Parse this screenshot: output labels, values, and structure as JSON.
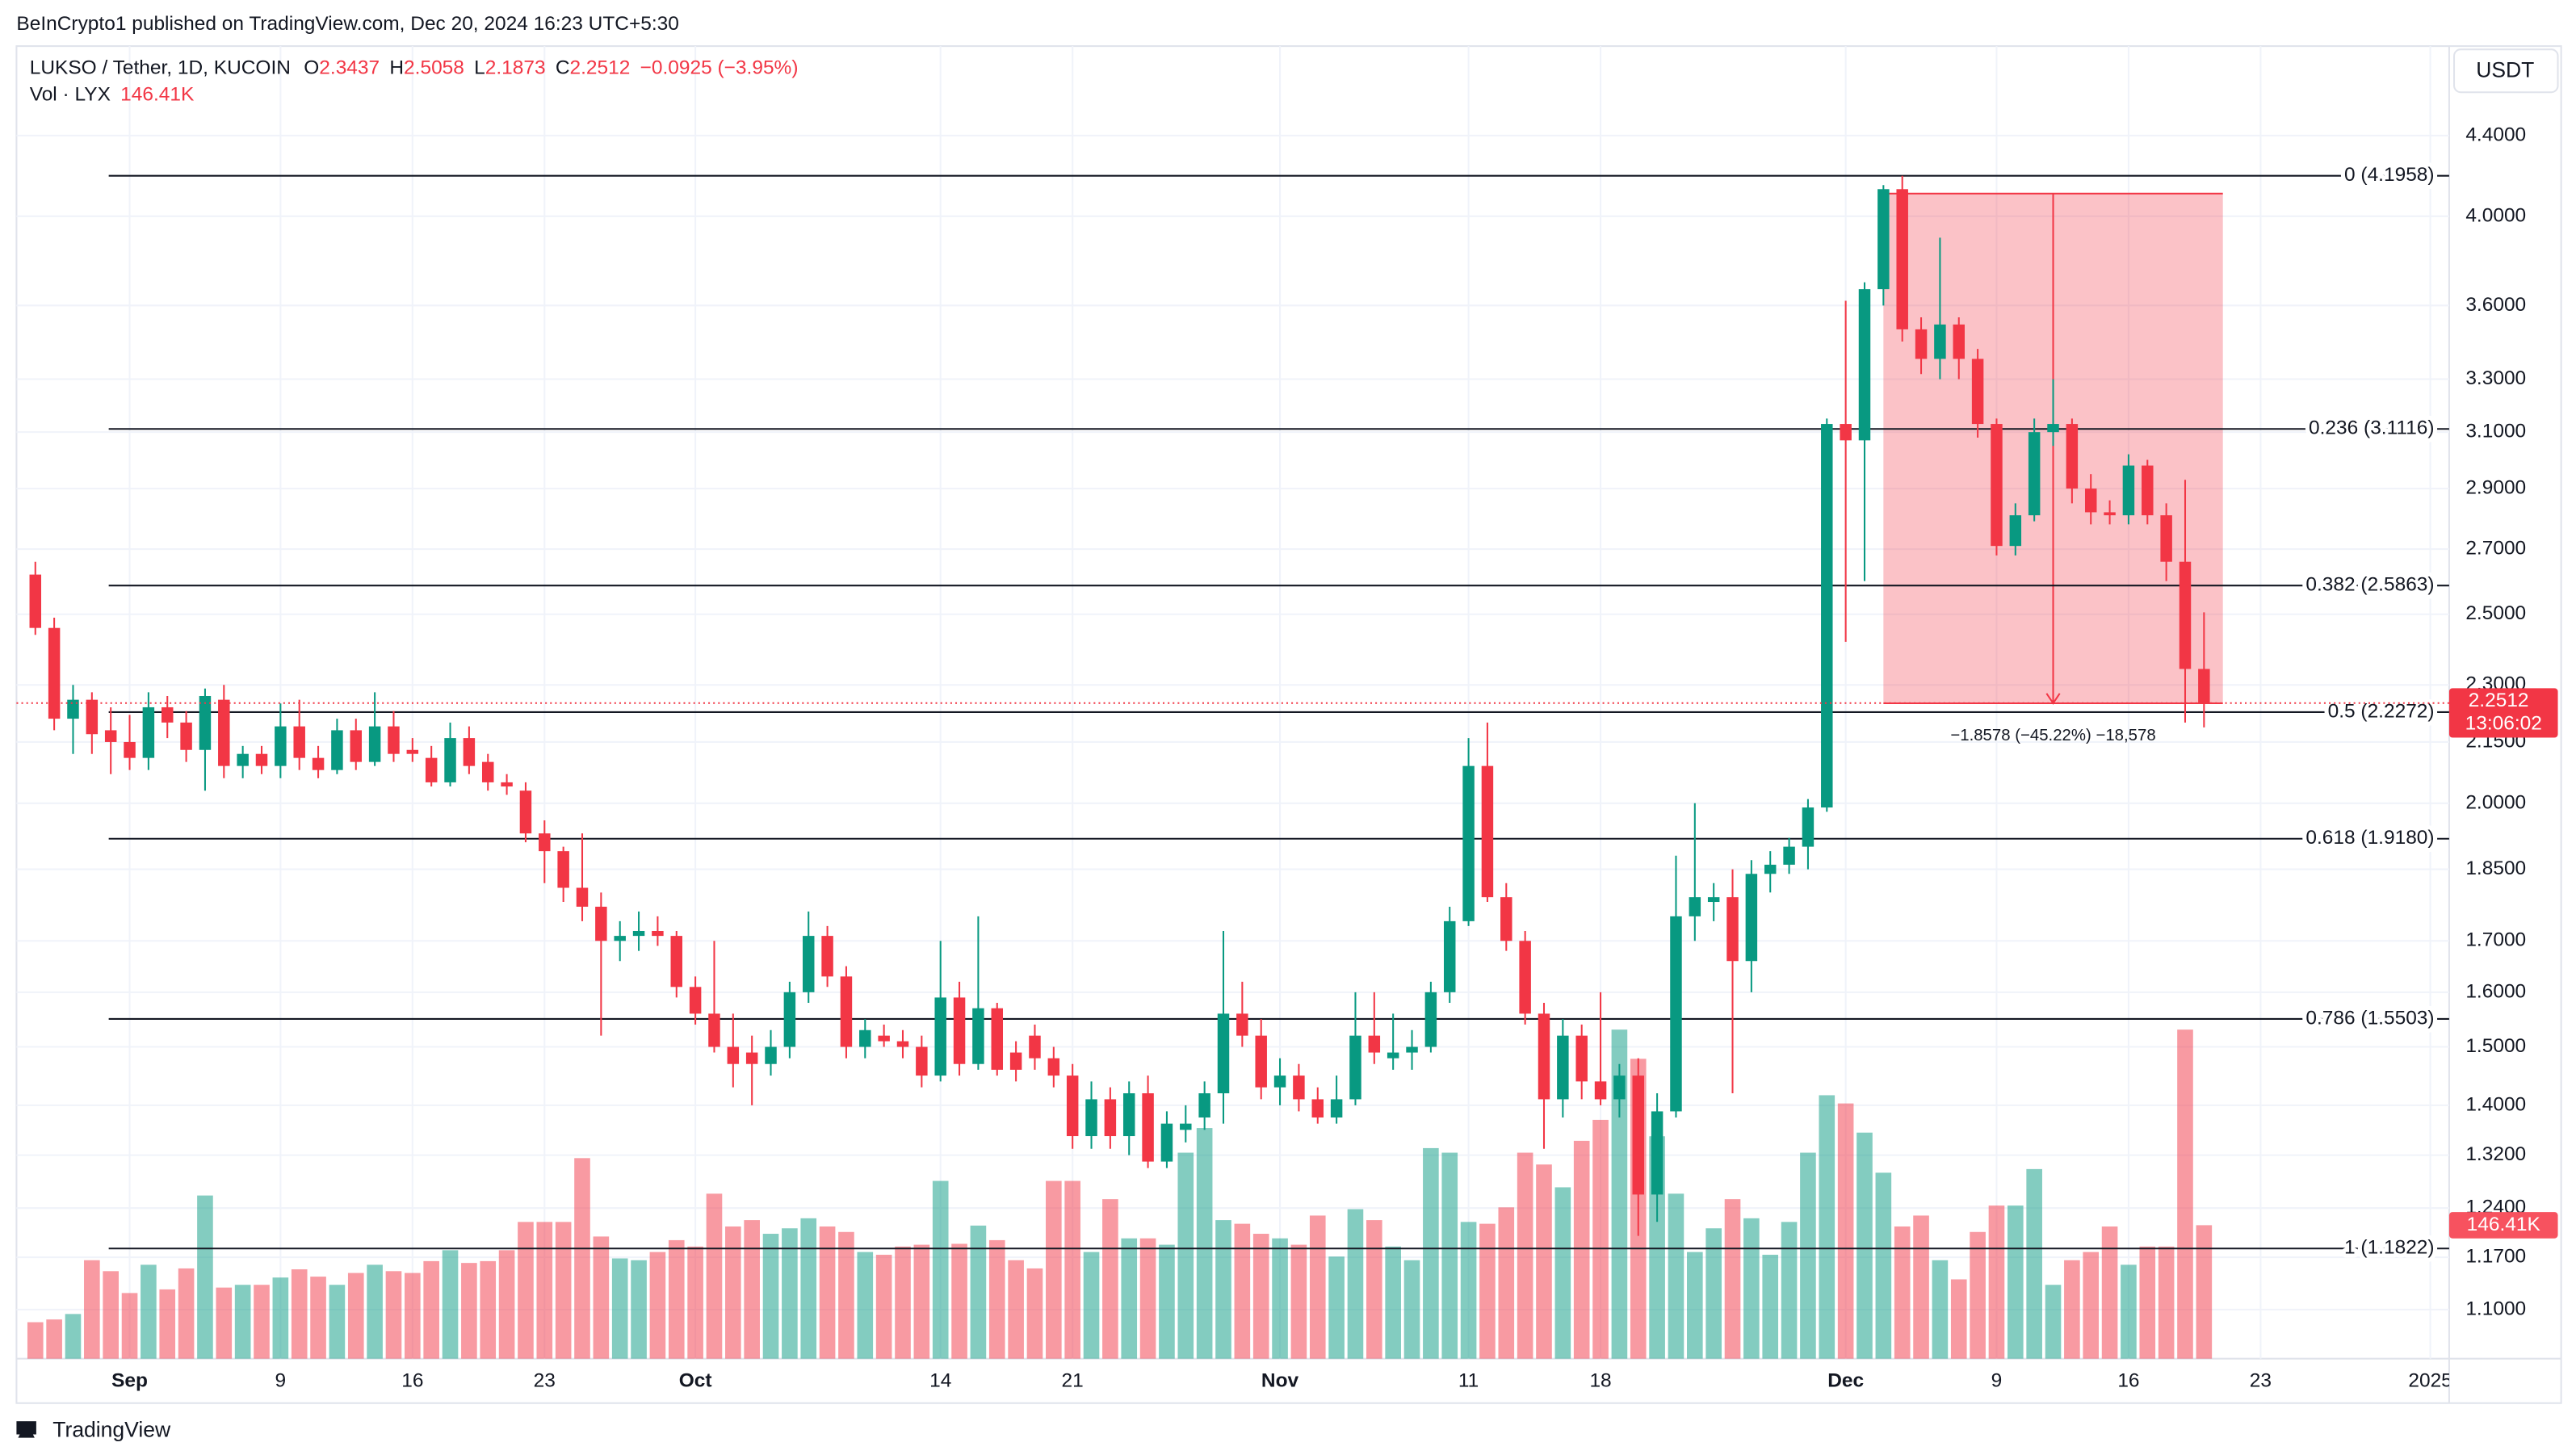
{
  "header": "BeInCrypto1 published on TradingView.com, Dec 20, 2024 16:23 UTC+5:30",
  "branding": "TradingView",
  "chart_data": {
    "type": "candlestick",
    "symbol": "LUKSO / Tether, 1D, KUCOIN",
    "legend_keys": [
      "O",
      "H",
      "L",
      "C"
    ],
    "change": "−0.0925 (−3.95%)",
    "volume_legend": "Vol · LYX",
    "volume_label": "146.41K",
    "currency": "USDT",
    "countdown": "13:06:02",
    "up_color": "#089981",
    "down_color": "#f23645",
    "log_scale": true,
    "grid": true,
    "x": [
      "08-27",
      "08-28",
      "08-29",
      "08-30",
      "08-31",
      "09-01",
      "09-02",
      "09-03",
      "09-04",
      "09-05",
      "09-06",
      "09-07",
      "09-08",
      "09-09",
      "09-10",
      "09-11",
      "09-12",
      "09-13",
      "09-14",
      "09-15",
      "09-16",
      "09-17",
      "09-18",
      "09-19",
      "09-20",
      "09-21",
      "09-22",
      "09-23",
      "09-24",
      "09-25",
      "09-26",
      "09-27",
      "09-28",
      "09-29",
      "09-30",
      "10-01",
      "10-02",
      "10-03",
      "10-04",
      "10-05",
      "10-06",
      "10-07",
      "10-08",
      "10-09",
      "10-10",
      "10-11",
      "10-12",
      "10-13",
      "10-14",
      "10-15",
      "10-16",
      "10-17",
      "10-18",
      "10-19",
      "10-20",
      "10-21",
      "10-22",
      "10-23",
      "10-24",
      "10-25",
      "10-26",
      "10-27",
      "10-28",
      "10-29",
      "10-30",
      "10-31",
      "11-01",
      "11-02",
      "11-03",
      "11-04",
      "11-05",
      "11-06",
      "11-07",
      "11-08",
      "11-09",
      "11-10",
      "11-11",
      "11-12",
      "11-13",
      "11-14",
      "11-15",
      "11-16",
      "11-17",
      "11-18",
      "11-19",
      "11-20",
      "11-21",
      "11-22",
      "11-23",
      "11-24",
      "11-25",
      "11-26",
      "11-27",
      "11-28",
      "11-29",
      "11-30",
      "12-01",
      "12-02",
      "12-03",
      "12-04",
      "12-05",
      "12-06",
      "12-07",
      "12-08",
      "12-09",
      "12-10",
      "12-11",
      "12-12",
      "12-13",
      "12-14",
      "12-15",
      "12-16",
      "12-17",
      "12-18",
      "12-19",
      "12-20"
    ],
    "open": [
      2.62,
      2.46,
      2.21,
      2.26,
      2.18,
      2.15,
      2.11,
      2.24,
      2.2,
      2.13,
      2.26,
      2.09,
      2.12,
      2.09,
      2.19,
      2.11,
      2.08,
      2.18,
      2.1,
      2.19,
      2.13,
      2.11,
      2.05,
      2.16,
      2.1,
      2.05,
      2.03,
      1.93,
      1.89,
      1.81,
      1.77,
      1.7,
      1.71,
      1.72,
      1.71,
      1.61,
      1.56,
      1.5,
      1.49,
      1.47,
      1.5,
      1.6,
      1.71,
      1.63,
      1.5,
      1.52,
      1.51,
      1.5,
      1.45,
      1.59,
      1.47,
      1.57,
      1.49,
      1.52,
      1.48,
      1.45,
      1.35,
      1.41,
      1.35,
      1.42,
      1.31,
      1.36,
      1.38,
      1.42,
      1.56,
      1.52,
      1.43,
      1.45,
      1.41,
      1.38,
      1.41,
      1.52,
      1.48,
      1.49,
      1.5,
      1.6,
      1.74,
      2.09,
      1.79,
      1.7,
      1.56,
      1.41,
      1.52,
      1.44,
      1.41,
      1.45,
      1.26,
      1.39,
      1.75,
      1.78,
      1.79,
      1.66,
      1.84,
      1.86,
      1.9,
      1.99,
      3.13,
      3.07,
      3.67,
      4.13,
      3.5,
      3.38,
      3.52,
      3.38,
      3.13,
      2.71,
      2.81,
      3.1,
      3.13,
      2.9,
      2.82,
      2.81,
      2.98,
      2.81,
      2.66,
      2.3437
    ],
    "high": [
      2.66,
      2.49,
      2.3,
      2.28,
      2.24,
      2.22,
      2.28,
      2.27,
      2.23,
      2.29,
      2.3,
      2.14,
      2.14,
      2.25,
      2.26,
      2.14,
      2.21,
      2.21,
      2.28,
      2.23,
      2.16,
      2.14,
      2.2,
      2.19,
      2.12,
      2.07,
      2.05,
      1.96,
      1.9,
      1.93,
      1.8,
      1.74,
      1.76,
      1.75,
      1.72,
      1.63,
      1.7,
      1.56,
      1.52,
      1.53,
      1.62,
      1.76,
      1.73,
      1.65,
      1.55,
      1.54,
      1.53,
      1.52,
      1.7,
      1.62,
      1.75,
      1.58,
      1.51,
      1.54,
      1.5,
      1.47,
      1.44,
      1.43,
      1.44,
      1.45,
      1.39,
      1.4,
      1.44,
      1.72,
      1.62,
      1.55,
      1.48,
      1.47,
      1.43,
      1.45,
      1.6,
      1.6,
      1.56,
      1.53,
      1.62,
      1.77,
      2.16,
      2.2,
      1.82,
      1.72,
      1.58,
      1.55,
      1.54,
      1.6,
      1.47,
      1.48,
      1.42,
      1.88,
      2.0,
      1.82,
      1.85,
      1.87,
      1.89,
      1.92,
      2.01,
      3.15,
      3.62,
      3.7,
      4.15,
      4.1958,
      3.55,
      3.9,
      3.55,
      3.42,
      3.15,
      2.85,
      3.15,
      3.3,
      3.15,
      2.95,
      2.86,
      3.02,
      3.0,
      2.85,
      2.93,
      2.5058
    ],
    "low": [
      2.44,
      2.18,
      2.12,
      2.12,
      2.07,
      2.08,
      2.08,
      2.16,
      2.1,
      2.03,
      2.06,
      2.06,
      2.07,
      2.06,
      2.08,
      2.06,
      2.07,
      2.08,
      2.09,
      2.1,
      2.1,
      2.04,
      2.04,
      2.07,
      2.03,
      2.02,
      1.91,
      1.82,
      1.78,
      1.74,
      1.52,
      1.66,
      1.68,
      1.69,
      1.59,
      1.54,
      1.49,
      1.43,
      1.4,
      1.45,
      1.48,
      1.58,
      1.61,
      1.48,
      1.48,
      1.5,
      1.48,
      1.43,
      1.44,
      1.45,
      1.46,
      1.45,
      1.44,
      1.46,
      1.43,
      1.33,
      1.33,
      1.33,
      1.32,
      1.3,
      1.3,
      1.34,
      1.36,
      1.37,
      1.5,
      1.41,
      1.4,
      1.39,
      1.37,
      1.37,
      1.4,
      1.47,
      1.46,
      1.46,
      1.49,
      1.58,
      1.73,
      1.78,
      1.68,
      1.54,
      1.33,
      1.38,
      1.41,
      1.4,
      1.38,
      1.2,
      1.22,
      1.38,
      1.7,
      1.74,
      1.42,
      1.6,
      1.8,
      1.84,
      1.85,
      1.98,
      2.42,
      2.6,
      3.6,
      3.45,
      3.32,
      3.3,
      3.3,
      3.08,
      2.68,
      2.68,
      2.79,
      3.05,
      2.85,
      2.78,
      2.78,
      2.78,
      2.78,
      2.6,
      2.2,
      2.1873
    ],
    "close": [
      2.46,
      2.21,
      2.26,
      2.17,
      2.15,
      2.11,
      2.24,
      2.2,
      2.13,
      2.27,
      2.09,
      2.12,
      2.09,
      2.19,
      2.11,
      2.08,
      2.18,
      2.1,
      2.19,
      2.12,
      2.12,
      2.05,
      2.16,
      2.09,
      2.05,
      2.04,
      1.93,
      1.89,
      1.81,
      1.77,
      1.7,
      1.71,
      1.72,
      1.71,
      1.61,
      1.56,
      1.5,
      1.47,
      1.47,
      1.5,
      1.6,
      1.71,
      1.63,
      1.5,
      1.53,
      1.51,
      1.5,
      1.45,
      1.59,
      1.47,
      1.57,
      1.46,
      1.46,
      1.48,
      1.45,
      1.35,
      1.41,
      1.35,
      1.42,
      1.31,
      1.37,
      1.37,
      1.42,
      1.56,
      1.52,
      1.43,
      1.45,
      1.41,
      1.38,
      1.41,
      1.52,
      1.49,
      1.49,
      1.5,
      1.6,
      1.74,
      2.09,
      1.79,
      1.7,
      1.56,
      1.41,
      1.52,
      1.44,
      1.41,
      1.45,
      1.26,
      1.39,
      1.75,
      1.79,
      1.79,
      1.66,
      1.84,
      1.86,
      1.9,
      1.99,
      3.13,
      3.07,
      3.67,
      4.13,
      3.5,
      3.38,
      3.52,
      3.38,
      3.13,
      2.71,
      2.81,
      3.1,
      3.13,
      2.9,
      2.82,
      2.81,
      2.98,
      2.81,
      2.66,
      2.3437,
      2.2512
    ],
    "volume": [
      40000,
      43000,
      49000,
      108000,
      96000,
      72000,
      103000,
      76000,
      99000,
      179000,
      78000,
      81000,
      81000,
      89000,
      98000,
      90000,
      81000,
      94000,
      103000,
      96000,
      94000,
      107000,
      119000,
      105000,
      107000,
      119000,
      150000,
      150000,
      150000,
      220000,
      134000,
      110000,
      108000,
      117000,
      130000,
      123000,
      181000,
      145000,
      152000,
      137000,
      143000,
      154000,
      145000,
      139000,
      117000,
      114000,
      123000,
      125000,
      195000,
      126000,
      146000,
      130000,
      108000,
      99000,
      195000,
      195000,
      117000,
      175000,
      132000,
      132000,
      125000,
      226000,
      253000,
      152000,
      148000,
      137000,
      132000,
      125000,
      157000,
      112000,
      164000,
      152000,
      123000,
      108000,
      231000,
      226000,
      150000,
      148000,
      166000,
      226000,
      213000,
      188000,
      239000,
      262000,
      361000,
      329000,
      244000,
      181000,
      117000,
      143000,
      175000,
      154000,
      114000,
      150000,
      226000,
      289000,
      280000,
      248000,
      204000,
      145000,
      157000,
      108000,
      87000,
      139000,
      168000,
      168000,
      208000,
      81000,
      108000,
      117000,
      145000,
      103000,
      123000,
      123000,
      361000,
      146410
    ],
    "xlim": [
      "08-26",
      "01-02"
    ],
    "xticks": [
      {
        "value": "09-01",
        "label": "Sep"
      },
      {
        "value": "09-09",
        "label": "9"
      },
      {
        "value": "09-16",
        "label": "16"
      },
      {
        "value": "09-23",
        "label": "23"
      },
      {
        "value": "10-01",
        "label": "Oct"
      },
      {
        "value": "10-14",
        "label": "14"
      },
      {
        "value": "10-21",
        "label": "21"
      },
      {
        "value": "11-01",
        "label": "Nov"
      },
      {
        "value": "11-11",
        "label": "11"
      },
      {
        "value": "11-18",
        "label": "18"
      },
      {
        "value": "12-01",
        "label": "Dec"
      },
      {
        "value": "12-09",
        "label": "9"
      },
      {
        "value": "12-16",
        "label": "16"
      },
      {
        "value": "12-23",
        "label": "23"
      },
      {
        "value": "01-01",
        "label": "2025"
      }
    ],
    "ylim": [
      1.038,
      4.89
    ],
    "yticks": [
      {
        "value": 4.4,
        "label": "4.4000"
      },
      {
        "value": 4.0,
        "label": "4.0000"
      },
      {
        "value": 3.6,
        "label": "3.6000"
      },
      {
        "value": 3.3,
        "label": "3.3000"
      },
      {
        "value": 3.1,
        "label": "3.1000"
      },
      {
        "value": 2.9,
        "label": "2.9000"
      },
      {
        "value": 2.7,
        "label": "2.7000"
      },
      {
        "value": 2.5,
        "label": "2.5000"
      },
      {
        "value": 2.3,
        "label": "2.3000"
      },
      {
        "value": 2.15,
        "label": "2.1500"
      },
      {
        "value": 2.0,
        "label": "2.0000"
      },
      {
        "value": 1.85,
        "label": "1.8500"
      },
      {
        "value": 1.7,
        "label": "1.7000"
      },
      {
        "value": 1.6,
        "label": "1.6000"
      },
      {
        "value": 1.5,
        "label": "1.5000"
      },
      {
        "value": 1.4,
        "label": "1.4000"
      },
      {
        "value": 1.32,
        "label": "1.3200"
      },
      {
        "value": 1.24,
        "label": "1.2400"
      },
      {
        "value": 1.17,
        "label": "1.1700"
      },
      {
        "value": 1.1,
        "label": "1.1000"
      }
    ],
    "volume_ylim": [
      0,
      1440000
    ],
    "fib_levels": [
      {
        "value": 4.1958,
        "label": "0 (4.1958)"
      },
      {
        "value": 3.1116,
        "label": "0.236 (3.1116)"
      },
      {
        "value": 2.5863,
        "label": "0.382 (2.5863)"
      },
      {
        "value": 2.2272,
        "label": "0.5 (2.2272)"
      },
      {
        "value": 1.918,
        "label": "0.618 (1.9180)"
      },
      {
        "value": 1.5503,
        "label": "0.786 (1.5503)"
      },
      {
        "value": 1.1822,
        "label": "1 (1.1822)"
      }
    ],
    "measure": {
      "start": 4.1084,
      "end": 2.2506,
      "from": "12-03",
      "to": "12-21",
      "label": "−1.8578 (−45.22%) −18,578"
    }
  }
}
